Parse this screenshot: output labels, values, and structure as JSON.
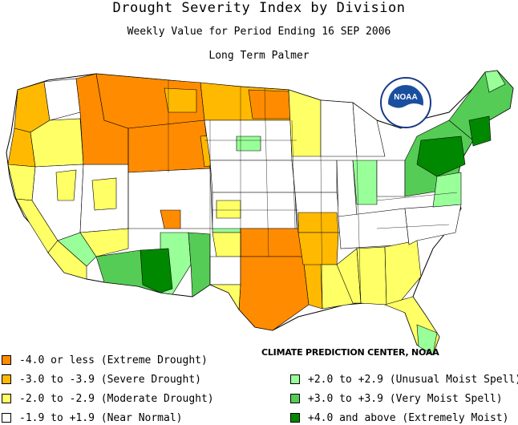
{
  "header": {
    "title": "Drought Severity Index by Division",
    "subtitle": "Weekly Value for Period Ending 16 SEP 2006",
    "index_name": "Long Term Palmer"
  },
  "logo": {
    "text": "NOAA",
    "icon": "noaa-logo-icon"
  },
  "credit": "CLIMATE PREDICTION CENTER, NOAA",
  "colors": {
    "extreme_drought": "#ff8c00",
    "severe_drought": "#ffb900",
    "moderate_drought": "#ffff66",
    "near_normal": "#ffffff",
    "unusual_moist": "#99ff99",
    "very_moist": "#55cc55",
    "extremely_moist": "#008800",
    "border": "#000000"
  },
  "legend": {
    "left": [
      {
        "label": "-4.0 or less (Extreme Drought)",
        "color": "#ff8c00"
      },
      {
        "label": "-3.0 to -3.9 (Severe Drought)",
        "color": "#ffb900"
      },
      {
        "label": "-2.0 to -2.9 (Moderate Drought)",
        "color": "#ffff66"
      },
      {
        "label": "-1.9 to +1.9 (Near Normal)",
        "color": "#ffffff"
      }
    ],
    "right": [
      {
        "label": "+2.0 to +2.9 (Unusual Moist Spell)",
        "color": "#99ff99"
      },
      {
        "label": "+3.0 to +3.9 (Very Moist Spell)",
        "color": "#55cc55"
      },
      {
        "label": "+4.0 and above (Extremely Moist)",
        "color": "#008800"
      }
    ]
  }
}
